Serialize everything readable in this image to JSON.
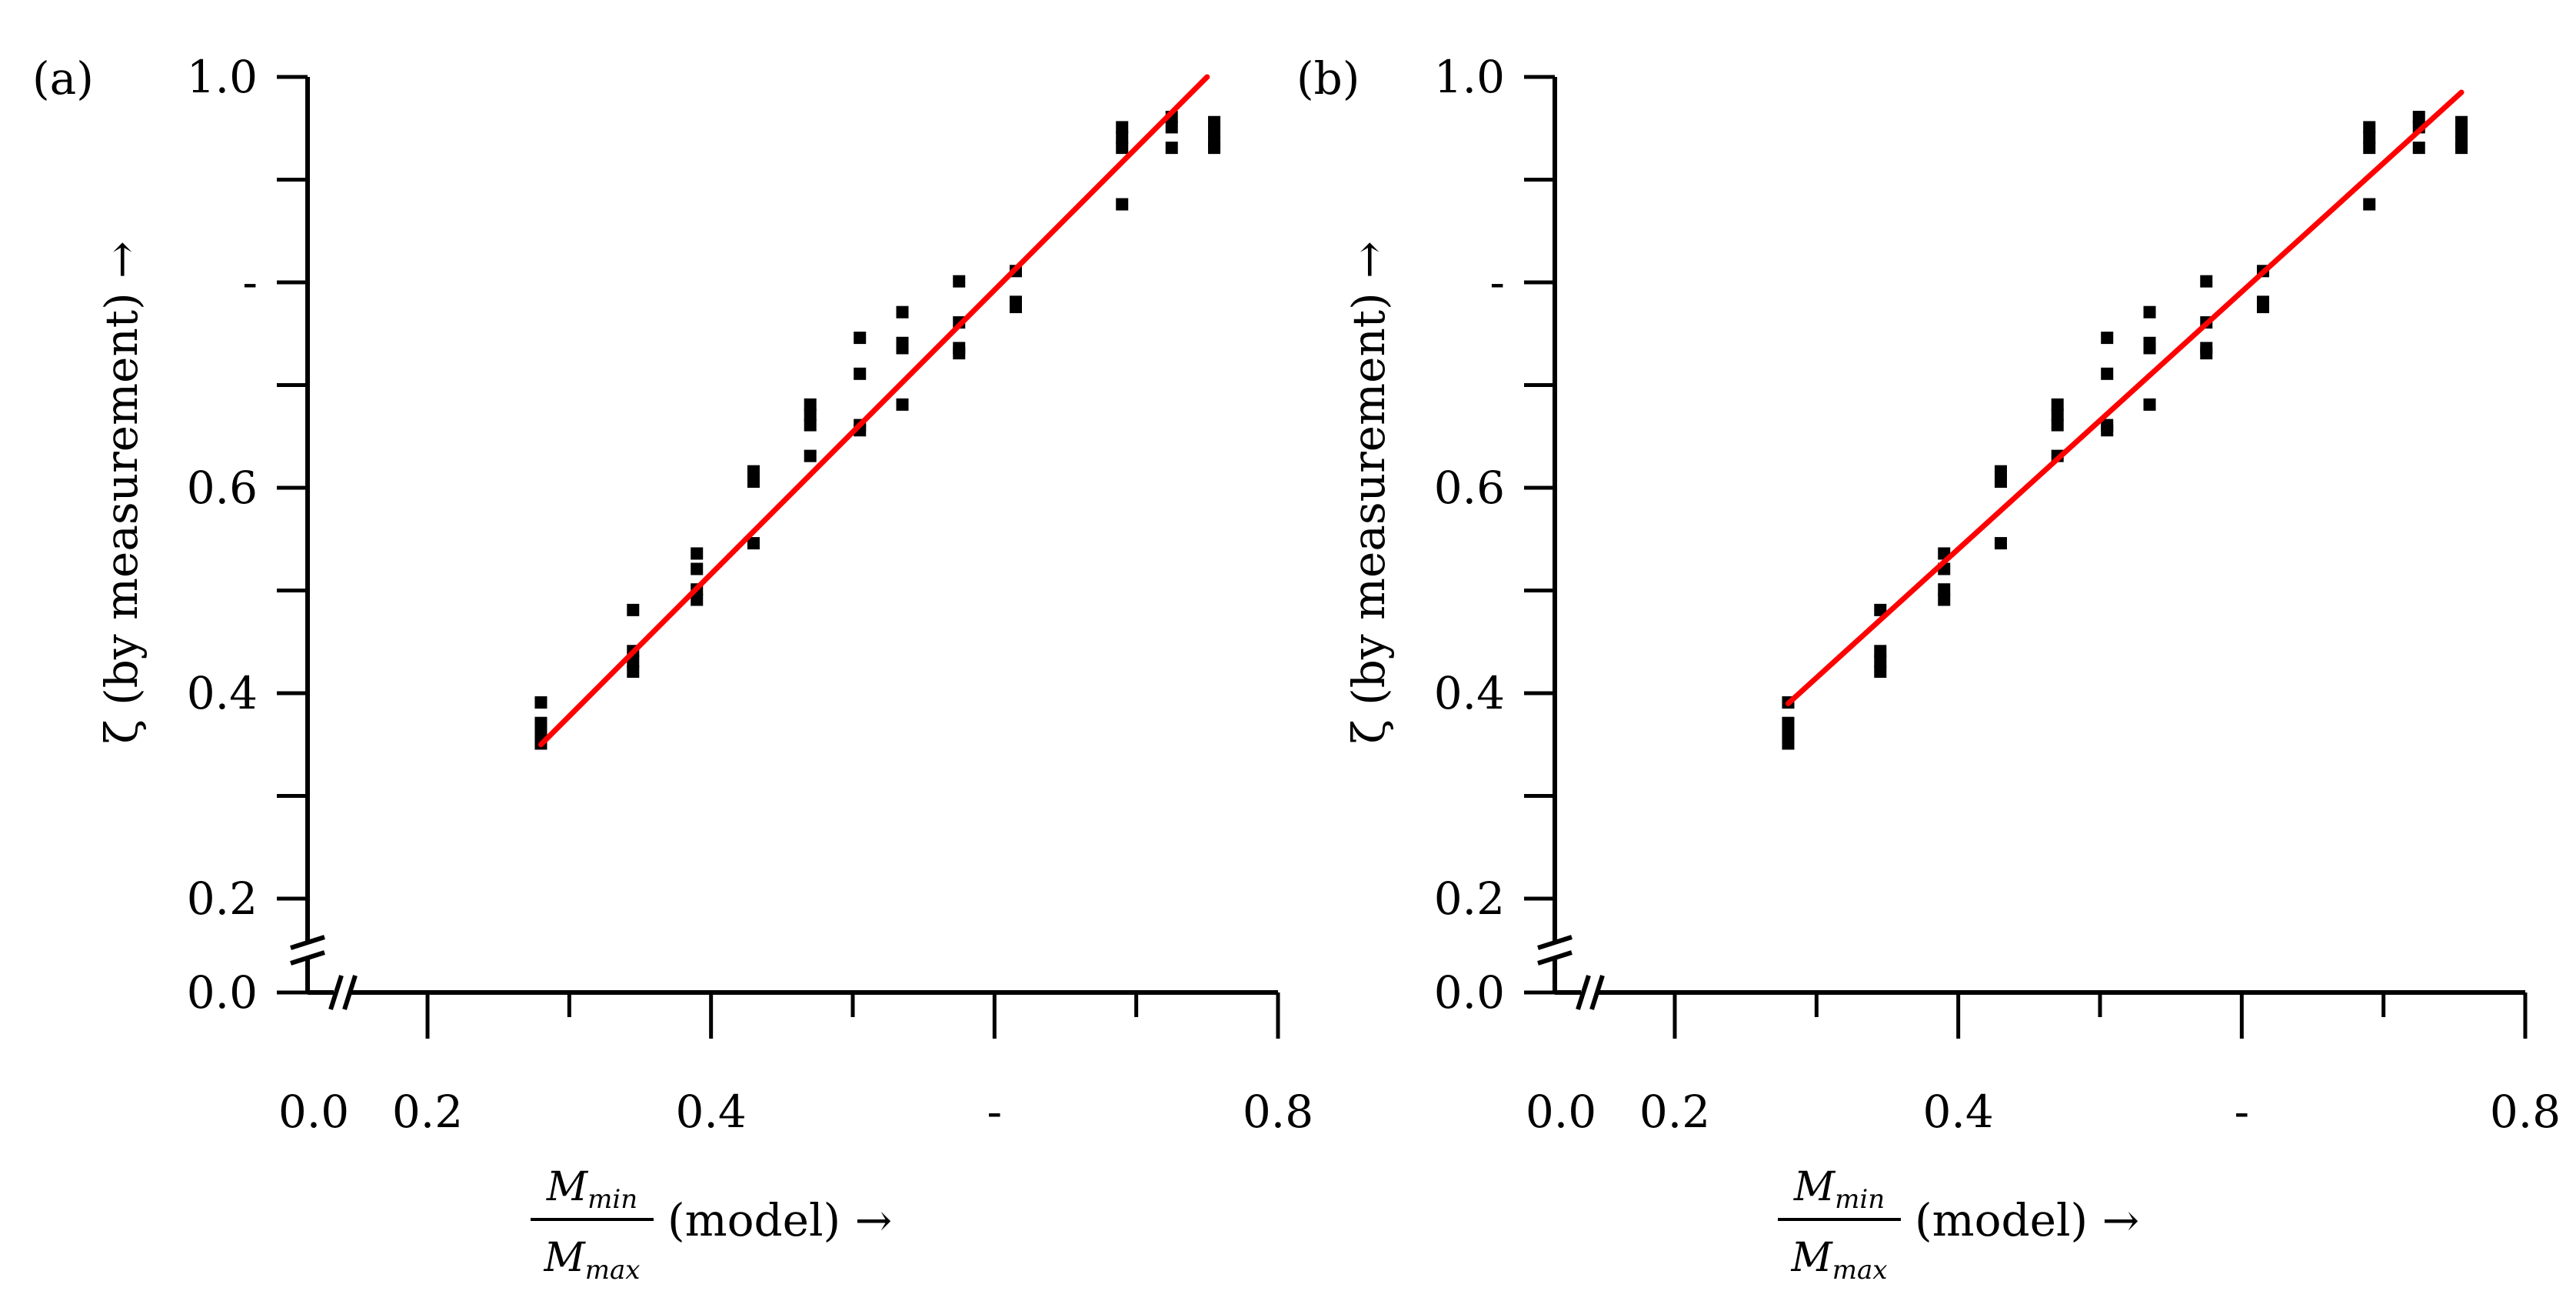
{
  "chart_data": [
    {
      "type": "scatter",
      "panel_label": "(a)",
      "ylabel": "ζ (by measurement) →",
      "xlabel": {
        "numerator": "M",
        "numerator_sub": "min",
        "denominator": "M",
        "denominator_sub": "max",
        "suffix": "(model) →"
      },
      "xlim": [
        0.0,
        0.8
      ],
      "ylim": [
        0.0,
        1.0
      ],
      "axis_break": true,
      "x_tick_labels": [
        {
          "value": 0.0,
          "label": "0.0"
        },
        {
          "value": 0.2,
          "label": "0.2"
        },
        {
          "value": 0.4,
          "label": "0.4"
        },
        {
          "value": 0.6,
          "label": "-"
        },
        {
          "value": 0.8,
          "label": "0.8"
        }
      ],
      "y_tick_labels": [
        {
          "value": 0.0,
          "label": "0.0"
        },
        {
          "value": 0.2,
          "label": "0.2"
        },
        {
          "value": 0.4,
          "label": "0.4"
        },
        {
          "value": 0.6,
          "label": "0.6"
        },
        {
          "value": 0.8,
          "label": "-"
        },
        {
          "value": 1.0,
          "label": "1.0"
        }
      ],
      "series": [
        {
          "name": "measurements",
          "x": [
            0.28,
            0.28,
            0.28,
            0.28,
            0.345,
            0.345,
            0.345,
            0.345,
            0.39,
            0.39,
            0.39,
            0.39,
            0.43,
            0.43,
            0.43,
            0.47,
            0.47,
            0.47,
            0.47,
            0.505,
            0.505,
            0.505,
            0.505,
            0.535,
            0.535,
            0.535,
            0.535,
            0.575,
            0.575,
            0.575,
            0.575,
            0.615,
            0.615,
            0.615,
            0.69,
            0.69,
            0.69,
            0.69,
            0.725,
            0.725,
            0.725,
            0.755,
            0.755,
            0.755,
            0.755
          ],
          "y": [
            0.391,
            0.371,
            0.361,
            0.351,
            0.481,
            0.441,
            0.431,
            0.421,
            0.536,
            0.521,
            0.501,
            0.491,
            0.616,
            0.606,
            0.546,
            0.681,
            0.671,
            0.661,
            0.631,
            0.746,
            0.711,
            0.661,
            0.656,
            0.771,
            0.741,
            0.736,
            0.681,
            0.801,
            0.761,
            0.736,
            0.731,
            0.811,
            0.781,
            0.776,
            0.951,
            0.941,
            0.931,
            0.876,
            0.961,
            0.951,
            0.931,
            0.956,
            0.946,
            0.936,
            0.931
          ]
        },
        {
          "name": "linear fit",
          "type": "line",
          "x": [
            0.28,
            0.75
          ],
          "y": [
            0.35,
            1.0
          ]
        }
      ],
      "colors": {
        "points": "#000000",
        "fit": "#ff0000"
      }
    },
    {
      "type": "scatter",
      "panel_label": "(b)",
      "ylabel": "ζ (by measurement) →",
      "xlabel": {
        "numerator": "M",
        "numerator_sub": "min",
        "denominator": "M",
        "denominator_sub": "max",
        "suffix": "(model) →"
      },
      "xlim": [
        0.0,
        0.8
      ],
      "ylim": [
        0.0,
        1.0
      ],
      "axis_break": true,
      "x_tick_labels": [
        {
          "value": 0.0,
          "label": "0.0"
        },
        {
          "value": 0.2,
          "label": "0.2"
        },
        {
          "value": 0.4,
          "label": "0.4"
        },
        {
          "value": 0.6,
          "label": "-"
        },
        {
          "value": 0.8,
          "label": "0.8"
        }
      ],
      "y_tick_labels": [
        {
          "value": 0.0,
          "label": "0.0"
        },
        {
          "value": 0.2,
          "label": "0.2"
        },
        {
          "value": 0.4,
          "label": "0.4"
        },
        {
          "value": 0.6,
          "label": "0.6"
        },
        {
          "value": 0.8,
          "label": "-"
        },
        {
          "value": 1.0,
          "label": "1.0"
        }
      ],
      "series": [
        {
          "name": "measurements",
          "x": [
            0.28,
            0.28,
            0.28,
            0.28,
            0.345,
            0.345,
            0.345,
            0.345,
            0.39,
            0.39,
            0.39,
            0.39,
            0.43,
            0.43,
            0.43,
            0.47,
            0.47,
            0.47,
            0.47,
            0.505,
            0.505,
            0.505,
            0.505,
            0.535,
            0.535,
            0.535,
            0.535,
            0.575,
            0.575,
            0.575,
            0.575,
            0.615,
            0.615,
            0.615,
            0.69,
            0.69,
            0.69,
            0.69,
            0.725,
            0.725,
            0.725,
            0.755,
            0.755,
            0.755,
            0.755
          ],
          "y": [
            0.391,
            0.371,
            0.361,
            0.351,
            0.481,
            0.441,
            0.431,
            0.421,
            0.536,
            0.521,
            0.501,
            0.491,
            0.616,
            0.606,
            0.546,
            0.681,
            0.671,
            0.661,
            0.631,
            0.746,
            0.711,
            0.661,
            0.656,
            0.771,
            0.741,
            0.736,
            0.681,
            0.801,
            0.761,
            0.736,
            0.731,
            0.811,
            0.781,
            0.776,
            0.951,
            0.941,
            0.931,
            0.876,
            0.961,
            0.951,
            0.931,
            0.956,
            0.946,
            0.936,
            0.931
          ]
        },
        {
          "name": "linear fit",
          "type": "line",
          "x": [
            0.28,
            0.755
          ],
          "y": [
            0.39,
            0.985
          ]
        }
      ],
      "colors": {
        "points": "#000000",
        "fit": "#ff0000"
      }
    }
  ]
}
